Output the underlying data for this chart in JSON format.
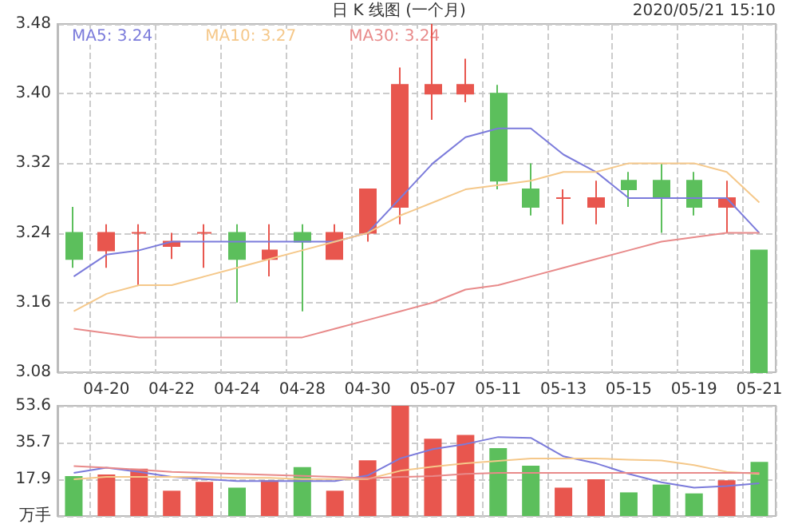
{
  "chart_data": [
    {
      "type": "candlestick",
      "title": "日 K 线图 (一个月)",
      "annotations": [
        "2020/05/21 15:10"
      ],
      "categories": [
        null,
        "04-20",
        null,
        "04-22",
        null,
        "04-24",
        null,
        "04-28",
        null,
        "04-30",
        null,
        "05-07",
        null,
        "05-11",
        null,
        "05-13",
        null,
        "05-15",
        null,
        "05-19",
        null,
        "05-21"
      ],
      "ohlc": [
        [
          3.24,
          3.27,
          3.2,
          3.21
        ],
        [
          3.22,
          3.25,
          3.2,
          3.24
        ],
        [
          3.24,
          3.25,
          3.18,
          3.24
        ],
        [
          3.225,
          3.24,
          3.21,
          3.23
        ],
        [
          3.24,
          3.25,
          3.2,
          3.24
        ],
        [
          3.24,
          3.25,
          3.16,
          3.21
        ],
        [
          3.21,
          3.25,
          3.19,
          3.22
        ],
        [
          3.24,
          3.25,
          3.15,
          3.23
        ],
        [
          3.21,
          3.25,
          3.21,
          3.24
        ],
        [
          3.24,
          3.29,
          3.23,
          3.29
        ],
        [
          3.27,
          3.43,
          3.25,
          3.41
        ],
        [
          3.4,
          3.48,
          3.37,
          3.41
        ],
        [
          3.4,
          3.44,
          3.39,
          3.41
        ],
        [
          3.4,
          3.41,
          3.29,
          3.3
        ],
        [
          3.29,
          3.32,
          3.26,
          3.27
        ],
        [
          3.28,
          3.29,
          3.25,
          3.28
        ],
        [
          3.27,
          3.3,
          3.25,
          3.28
        ],
        [
          3.3,
          3.31,
          3.27,
          3.29
        ],
        [
          3.3,
          3.32,
          3.24,
          3.28
        ],
        [
          3.3,
          3.31,
          3.26,
          3.27
        ],
        [
          3.27,
          3.3,
          3.24,
          3.28
        ],
        [
          3.22,
          3.22,
          3.08,
          3.08
        ]
      ],
      "colors": [
        "#5cbf5c",
        "#e8564e",
        "#e8564e",
        "#e8564e",
        "#e8564e",
        "#5cbf5c",
        "#e8564e",
        "#5cbf5c",
        "#e8564e",
        "#e8564e",
        "#e8564e",
        "#e8564e",
        "#e8564e",
        "#5cbf5c",
        "#5cbf5c",
        "#e8564e",
        "#e8564e",
        "#5cbf5c",
        "#5cbf5c",
        "#5cbf5c",
        "#e8564e",
        "#5cbf5c"
      ],
      "series": [
        {
          "type": "line",
          "name": "MA5: 3.24",
          "color": "#7b7bdb",
          "values": [
            3.19,
            3.215,
            3.22,
            3.23,
            3.23,
            3.23,
            3.23,
            3.23,
            3.23,
            3.24,
            3.28,
            3.32,
            3.35,
            3.36,
            3.36,
            3.33,
            3.31,
            3.28,
            3.28,
            3.28,
            3.28,
            3.24
          ]
        },
        {
          "type": "line",
          "name": "MA10: 3.27",
          "color": "#f5c88a",
          "values": [
            3.15,
            3.17,
            3.18,
            3.18,
            3.19,
            3.2,
            3.21,
            3.22,
            3.23,
            3.24,
            3.26,
            3.275,
            3.29,
            3.295,
            3.3,
            3.31,
            3.31,
            3.32,
            3.32,
            3.32,
            3.31,
            3.275
          ]
        },
        {
          "type": "line",
          "name": "MA30: 3.24",
          "color": "#e88a8a",
          "values": [
            3.13,
            3.125,
            3.12,
            3.12,
            3.12,
            3.12,
            3.12,
            3.12,
            3.13,
            3.14,
            3.15,
            3.16,
            3.175,
            3.18,
            3.19,
            3.2,
            3.21,
            3.22,
            3.23,
            3.235,
            3.24,
            3.24
          ]
        }
      ],
      "ylim": [
        3.08,
        3.48
      ],
      "yticks": [
        3.08,
        3.16,
        3.24,
        3.32,
        {
          "value": 3.4,
          "label": "3.40"
        },
        3.48
      ],
      "grid": true,
      "legend": "top left",
      "marker": "none"
    },
    {
      "type": "bar",
      "categories": [
        null,
        null,
        null,
        null,
        null,
        null,
        null,
        null,
        null,
        null,
        null,
        null,
        null,
        null,
        null,
        null,
        null,
        null,
        null,
        null,
        null,
        null
      ],
      "values": [
        19.4,
        20.2,
        23.0,
        12.3,
        16.6,
        13.8,
        17.4,
        23.8,
        12.3,
        27.1,
        53.6,
        37.6,
        39.4,
        33.0,
        24.5,
        13.8,
        17.9,
        11.5,
        15.3,
        11.0,
        17.4,
        26.3
      ],
      "colors": [
        "#5cbf5c",
        "#e8564e",
        "#e8564e",
        "#e8564e",
        "#e8564e",
        "#5cbf5c",
        "#e8564e",
        "#5cbf5c",
        "#e8564e",
        "#e8564e",
        "#e8564e",
        "#e8564e",
        "#e8564e",
        "#5cbf5c",
        "#5cbf5c",
        "#e8564e",
        "#e8564e",
        "#5cbf5c",
        "#5cbf5c",
        "#5cbf5c",
        "#e8564e",
        "#5cbf5c"
      ],
      "series": [
        {
          "type": "line",
          "color": "#7b7bdb",
          "values": [
            21,
            23.5,
            21.5,
            19,
            18,
            17,
            17,
            17,
            17,
            19.7,
            28,
            32.5,
            35,
            38.4,
            38,
            29,
            25.6,
            20.5,
            16.4,
            13.8,
            14.6,
            15.9
          ]
        },
        {
          "type": "line",
          "color": "#f5c88a",
          "values": [
            17.9,
            19,
            19,
            19,
            19,
            18.5,
            18.5,
            18,
            18,
            18,
            22,
            24,
            25.6,
            26.8,
            28,
            28,
            28,
            27.4,
            27,
            24.8,
            21.5,
            20.5
          ]
        },
        {
          "type": "line",
          "color": "#e88a8a",
          "values": [
            24.3,
            23.5,
            22.5,
            21.5,
            21,
            20.5,
            20,
            19.5,
            19,
            18.4,
            19,
            19.4,
            20.5,
            21,
            21,
            21,
            21,
            21,
            21,
            21,
            21,
            21
          ]
        }
      ],
      "ylim": [
        0,
        53.6
      ],
      "yticks": [
        {
          "value": 0,
          "label": "万手"
        },
        17.9,
        35.7,
        53.6
      ],
      "grid": true,
      "tick_labels": "y",
      "marker": "none"
    }
  ]
}
